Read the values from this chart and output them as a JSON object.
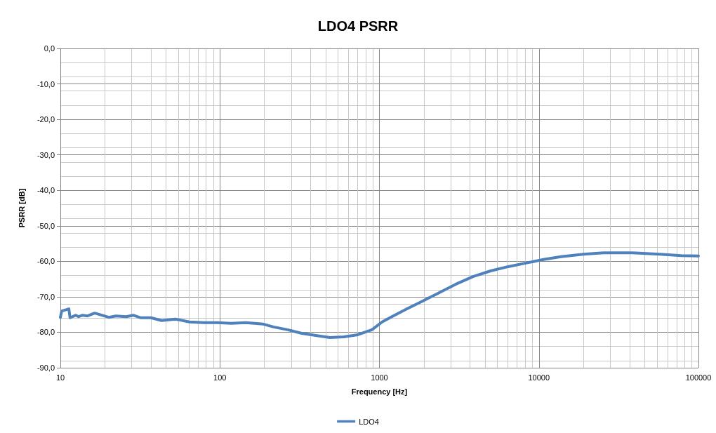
{
  "chart_data": {
    "type": "line",
    "title": "LDO4 PSRR",
    "xlabel": "Frequency [Hz]",
    "ylabel": "PSRR [dB]",
    "log": "x",
    "grid": true,
    "legend": "bottom",
    "marker": "none",
    "line_style": "solid",
    "xlim": [
      10,
      100000
    ],
    "xticks": [
      10,
      100,
      1000,
      10000,
      100000
    ],
    "ylim": [
      -90,
      0
    ],
    "yticks": [
      {
        "value": -90,
        "label": "-90,0"
      },
      {
        "value": -80,
        "label": "-80,0"
      },
      {
        "value": -70,
        "label": "-70,0"
      },
      {
        "value": -60,
        "label": "-60,0"
      },
      {
        "value": -50,
        "label": "-50,0"
      },
      {
        "value": -40,
        "label": "-40,0"
      },
      {
        "value": -30,
        "label": "-30,0"
      },
      {
        "value": -20,
        "label": "-20,0"
      },
      {
        "value": -10,
        "label": "-10,0"
      },
      {
        "value": 0,
        "label": "0,0"
      }
    ],
    "series": [
      {
        "name": "LDO4",
        "color": "#4f81bd",
        "x": [
          10,
          10.2,
          10.95,
          11.3,
          11.5,
          12.5,
          13,
          13.8,
          14.8,
          16.4,
          18.2,
          20.1,
          22.3,
          25.9,
          28.6,
          31.7,
          36.9,
          43.1,
          52.6,
          64.5,
          78.9,
          96.6,
          118,
          145,
          187,
          217,
          266,
          326,
          399,
          489,
          598,
          733,
          898,
          1040,
          1220,
          1490,
          1830,
          2340,
          3000,
          3860,
          4980,
          6420,
          8270,
          10670,
          13750,
          18990,
          25420,
          38400,
          57300,
          78000,
          100000
        ],
        "values": [
          -75.8,
          -74.0,
          -73.6,
          -73.4,
          -75.9,
          -75.2,
          -75.6,
          -75.2,
          -75.4,
          -74.6,
          -75.2,
          -75.8,
          -75.4,
          -75.6,
          -75.2,
          -75.9,
          -75.9,
          -76.7,
          -76.3,
          -77.1,
          -77.3,
          -77.3,
          -77.5,
          -77.3,
          -77.7,
          -78.5,
          -79.3,
          -80.3,
          -80.9,
          -81.5,
          -81.3,
          -80.7,
          -79.3,
          -77.1,
          -75.4,
          -73.4,
          -71.4,
          -69.0,
          -66.5,
          -64.3,
          -62.7,
          -61.5,
          -60.5,
          -59.5,
          -58.7,
          -58.0,
          -57.6,
          -57.6,
          -58.0,
          -58.4,
          -58.5
        ]
      }
    ]
  }
}
